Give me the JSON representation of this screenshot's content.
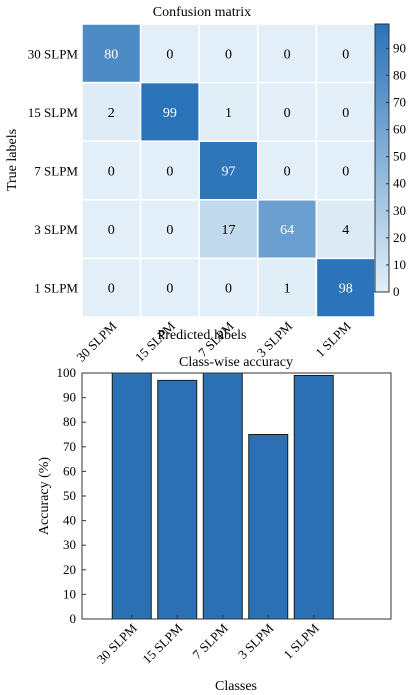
{
  "colors": {
    "bar_fill": "#2b6fb4",
    "cmap_low": "#e2eff8",
    "cmap_high": "#2a73b8",
    "axis": "#333333"
  },
  "chart_data": [
    {
      "type": "heatmap",
      "title": "Confusion matrix",
      "xlabel": "Predicted labels",
      "ylabel": "True labels",
      "x_categories": [
        "30 SLPM",
        "15 SLPM",
        "7 SLPM",
        "3 SLPM",
        "1 SLPM"
      ],
      "y_categories": [
        "30 SLPM",
        "15 SLPM",
        "7 SLPM",
        "3 SLPM",
        "1 SLPM"
      ],
      "values": [
        [
          80,
          0,
          0,
          0,
          0
        ],
        [
          2,
          99,
          1,
          0,
          0
        ],
        [
          0,
          0,
          97,
          0,
          0
        ],
        [
          0,
          0,
          17,
          64,
          4
        ],
        [
          0,
          0,
          0,
          1,
          98
        ]
      ],
      "colorbar": {
        "range": [
          0,
          99
        ],
        "ticks": [
          0,
          10,
          20,
          30,
          40,
          50,
          60,
          70,
          80,
          90
        ]
      }
    },
    {
      "type": "bar",
      "title": "Class-wise accuracy",
      "xlabel": "Classes",
      "ylabel": "Accuracy (%)",
      "categories": [
        "30 SLPM",
        "15 SLPM",
        "7 SLPM",
        "3 SLPM",
        "1 SLPM"
      ],
      "values": [
        100,
        97,
        100,
        75,
        99
      ],
      "ylim": [
        0,
        100
      ],
      "yticks": [
        0,
        10,
        20,
        30,
        40,
        50,
        60,
        70,
        80,
        90,
        100
      ],
      "grid": false
    }
  ]
}
